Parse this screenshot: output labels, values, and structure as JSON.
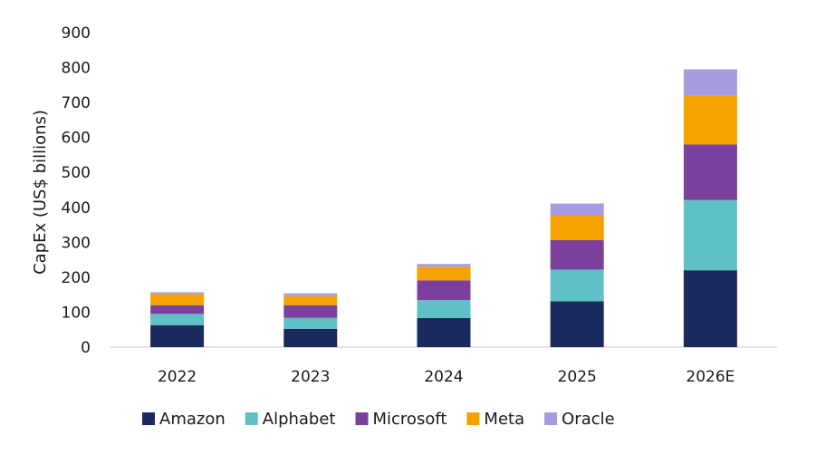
{
  "chart_data": {
    "type": "bar",
    "stacked": true,
    "title": "",
    "xlabel": "",
    "ylabel": "CapEx (US$ billions)",
    "ylim": [
      0,
      900
    ],
    "yticks": [
      0,
      100,
      200,
      300,
      400,
      500,
      600,
      700,
      800,
      900
    ],
    "grid": false,
    "legend_position": "bottom",
    "categories": [
      "2022",
      "2023",
      "2024",
      "2025",
      "2026E"
    ],
    "series": [
      {
        "name": "Amazon",
        "color": "#1b2a5c",
        "values": [
          63,
          52,
          83,
          131,
          220
        ]
      },
      {
        "name": "Alphabet",
        "color": "#5fc1c6",
        "values": [
          32,
          32,
          52,
          91,
          201
        ]
      },
      {
        "name": "Microsoft",
        "color": "#7b3f9e",
        "values": [
          25,
          36,
          56,
          84,
          159
        ]
      },
      {
        "name": "Meta",
        "color": "#f5a100",
        "values": [
          32,
          26,
          39,
          70,
          139
        ]
      },
      {
        "name": "Oracle",
        "color": "#a99be0",
        "values": [
          5,
          8,
          8,
          35,
          76
        ]
      }
    ]
  }
}
